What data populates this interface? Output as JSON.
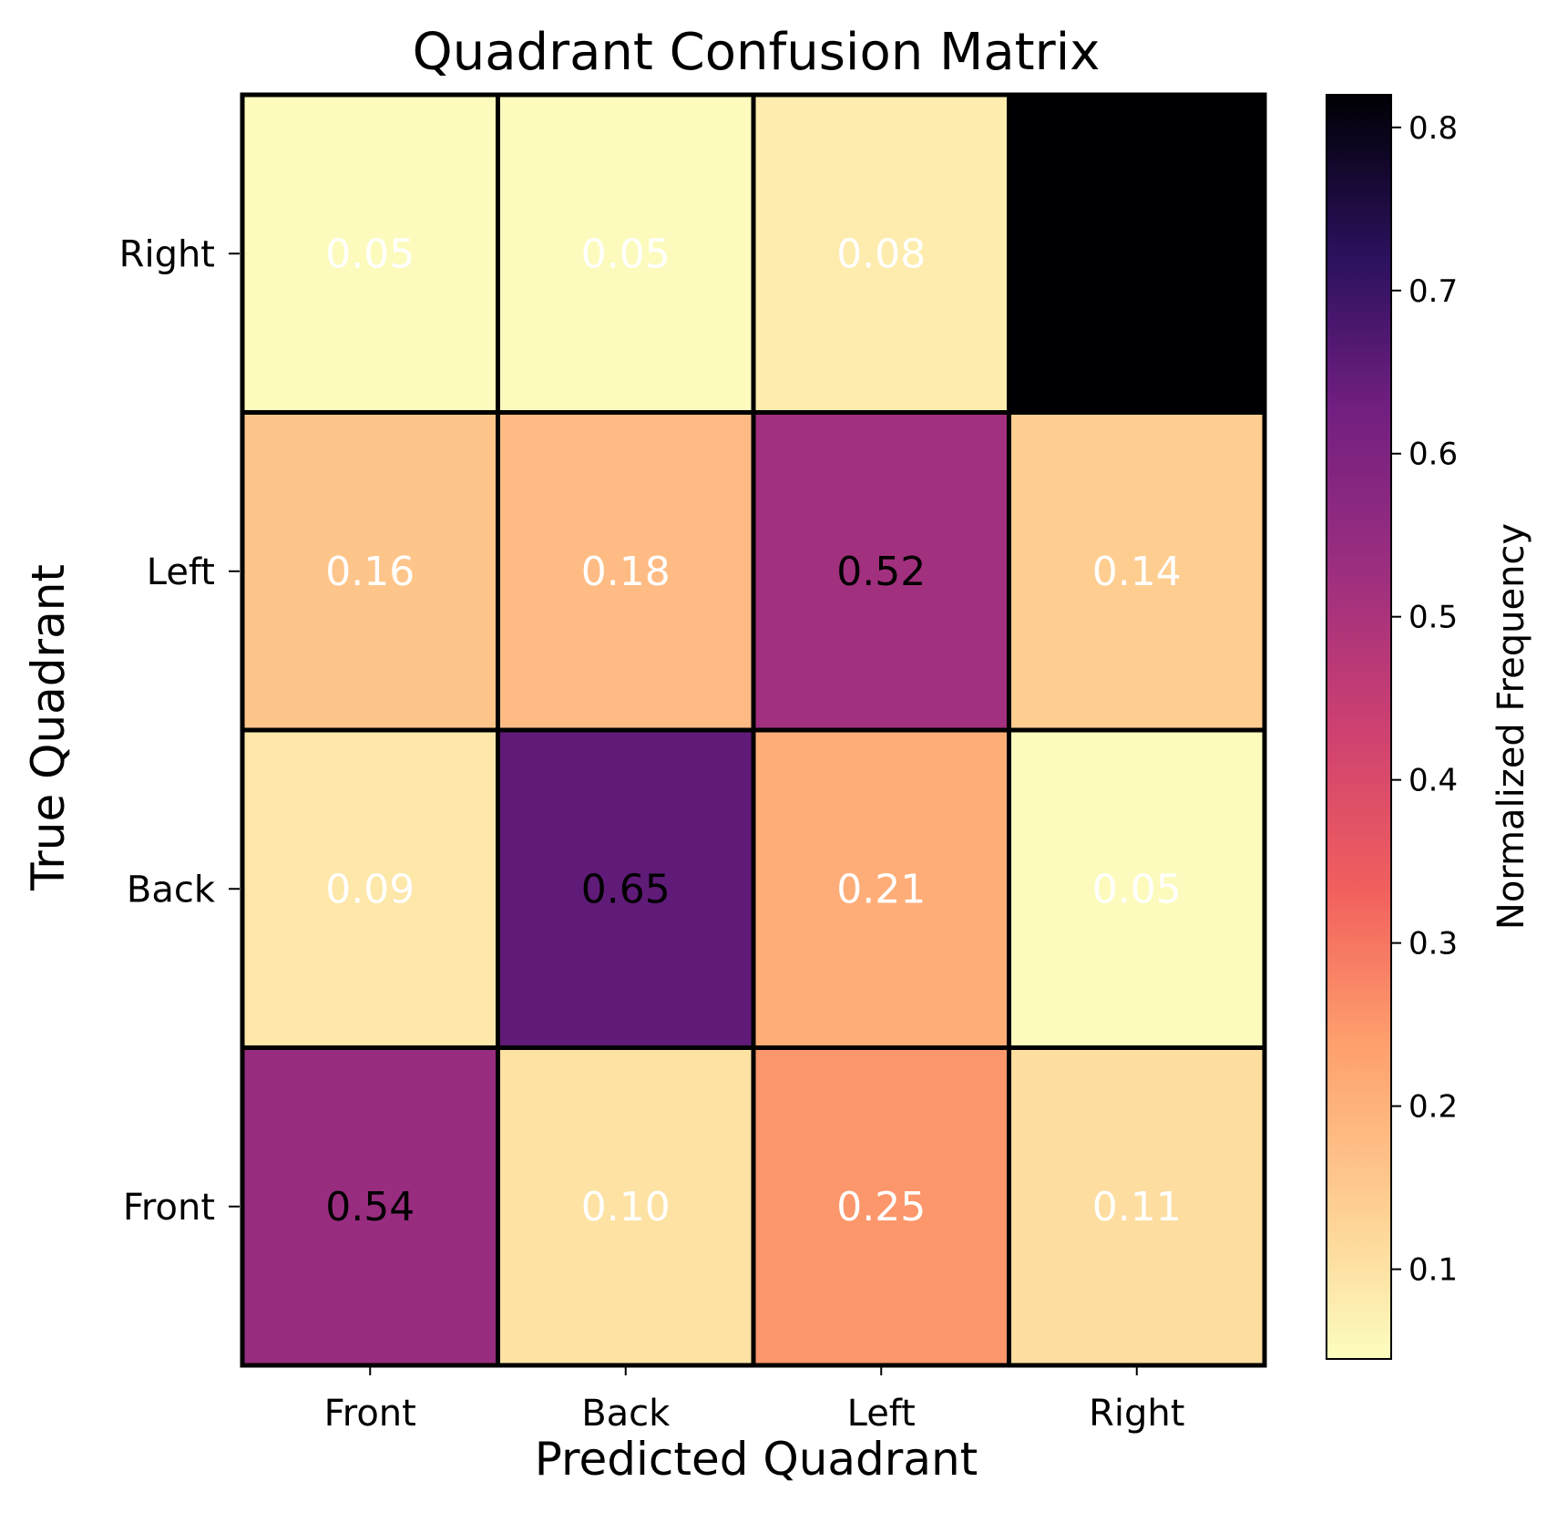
{
  "chart_data": {
    "type": "heatmap",
    "title": "Quadrant Confusion Matrix",
    "xlabel": "Predicted Quadrant",
    "ylabel": "True Quadrant",
    "x_categories": [
      "Front",
      "Back",
      "Left",
      "Right"
    ],
    "y_categories_top_to_bottom": [
      "Right",
      "Left",
      "Back",
      "Front"
    ],
    "values": [
      [
        0.05,
        0.05,
        0.08,
        0.82
      ],
      [
        0.16,
        0.18,
        0.52,
        0.14
      ],
      [
        0.09,
        0.65,
        0.21,
        0.05
      ],
      [
        0.54,
        0.1,
        0.25,
        0.11
      ]
    ],
    "cell_labels": [
      [
        "0.05",
        "0.05",
        "0.08",
        ""
      ],
      [
        "0.16",
        "0.18",
        "0.52",
        "0.14"
      ],
      [
        "0.09",
        "0.65",
        "0.21",
        "0.05"
      ],
      [
        "0.54",
        "0.10",
        "0.25",
        "0.11"
      ]
    ],
    "label_colors": [
      [
        "#ffffff",
        "#ffffff",
        "#ffffff",
        "#ffffff"
      ],
      [
        "#ffffff",
        "#ffffff",
        "#000000",
        "#ffffff"
      ],
      [
        "#ffffff",
        "#000000",
        "#ffffff",
        "#ffffff"
      ],
      [
        "#000000",
        "#ffffff",
        "#ffffff",
        "#ffffff"
      ]
    ],
    "colormap": "magma_r",
    "colorbar": {
      "label": "Normalized Frequency",
      "range": [
        0.045,
        0.82
      ],
      "ticks": [
        "0.1",
        "0.2",
        "0.3",
        "0.4",
        "0.5",
        "0.6",
        "0.7",
        "0.8"
      ]
    }
  }
}
